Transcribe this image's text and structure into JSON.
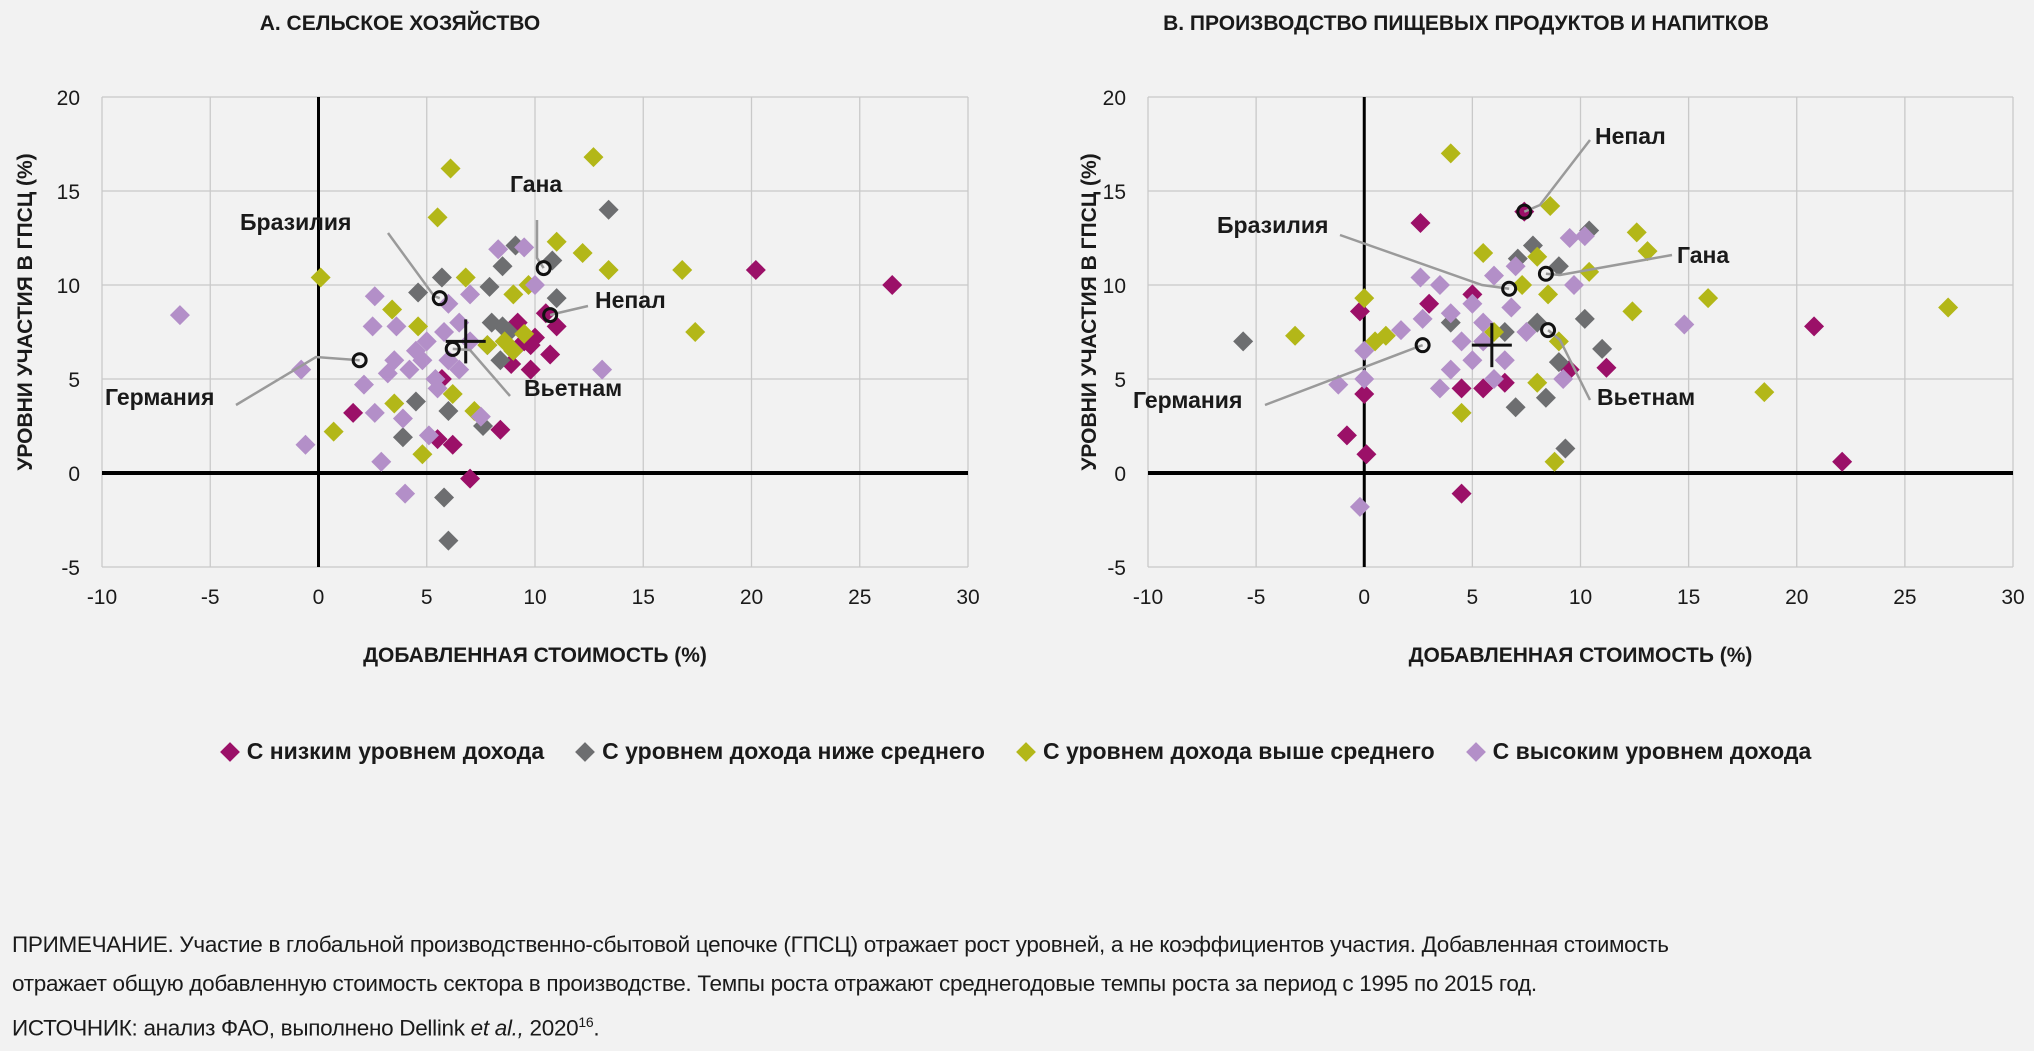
{
  "colors": {
    "low": "#9b1068",
    "lower_middle": "#6d6e70",
    "upper_middle": "#b3b718",
    "high": "#b38fc8",
    "background": "#f2f2f2",
    "grid": "#c9c9c9"
  },
  "legend": [
    {
      "key": "low",
      "label": "С низким уровнем дохода"
    },
    {
      "key": "lower_middle",
      "label": "С уровнем дохода ниже среднего"
    },
    {
      "key": "upper_middle",
      "label": "С уровнем дохода выше среднего"
    },
    {
      "key": "high",
      "label": "С высоким уровнем дохода"
    }
  ],
  "note": {
    "line1": "ПРИМЕЧАНИЕ. Участие в глобальной производственно-сбытовой цепочке (ГПСЦ) отражает рост уровней, а не коэффициентов участия. Добавленная стоимость",
    "line2": "отражает общую добавленную стоимость сектора в производстве. Темпы роста отражают среднегодовые темпы роста за период с 1995 по 2015 год.",
    "line3_prefix": "ИСТОЧНИК: анализ ФАО, выполнено Dellink ",
    "line3_italic": "et al.,",
    "line3_year": " 2020",
    "line3_sup": "16",
    "line3_end": "."
  },
  "chart_data": [
    {
      "type": "scatter",
      "title": "А. СЕЛЬСКОЕ ХОЗЯЙСТВО",
      "xlabel": "ДОБАВЛЕННАЯ СТОИМОСТЬ (%)",
      "ylabel": "УРОВНИ УЧАСТИЯ В ГПСЦ (%)",
      "xlim": [
        -10,
        30
      ],
      "ylim": [
        -5,
        20
      ],
      "xticks": [
        -10,
        -5,
        0,
        5,
        10,
        15,
        20,
        25,
        30
      ],
      "yticks": [
        -5,
        0,
        5,
        10,
        15,
        20
      ],
      "grid": true,
      "mean": [
        6.8,
        7.0
      ],
      "series": [
        {
          "key": "low",
          "name": "С низким уровнем дохода",
          "points": [
            [
              20.2,
              10.8
            ],
            [
              26.5,
              10
            ],
            [
              10.5,
              8.5
            ],
            [
              11,
              7.8
            ],
            [
              10.7,
              6.3
            ],
            [
              9.8,
              5.5
            ],
            [
              9.5,
              7
            ],
            [
              7,
              -0.3
            ],
            [
              8.4,
              2.3
            ],
            [
              1.6,
              3.2
            ],
            [
              5.5,
              1.8
            ],
            [
              6.2,
              1.5
            ],
            [
              9.2,
              8
            ],
            [
              10,
              7.2
            ],
            [
              9.8,
              6.8
            ],
            [
              5.7,
              5
            ],
            [
              8.9,
              5.8
            ]
          ]
        },
        {
          "key": "lower_middle",
          "name": "С уровнем дохода ниже среднего",
          "points": [
            [
              13.4,
              14
            ],
            [
              10.8,
              11.3
            ],
            [
              9.1,
              12.1
            ],
            [
              8.5,
              11
            ],
            [
              5.7,
              10.4
            ],
            [
              4.6,
              9.6
            ],
            [
              11,
              9.3
            ],
            [
              7.9,
              9.9
            ],
            [
              8,
              8
            ],
            [
              8.5,
              7.8
            ],
            [
              7.8,
              6.8
            ],
            [
              8.4,
              6
            ],
            [
              4.5,
              3.8
            ],
            [
              6,
              3.3
            ],
            [
              5.8,
              -1.3
            ],
            [
              6,
              -3.6
            ],
            [
              3.9,
              1.9
            ],
            [
              7.6,
              2.5
            ],
            [
              8.8,
              7.5
            ],
            [
              9,
              6.5
            ]
          ]
        },
        {
          "key": "upper_middle",
          "name": "С уровнем дохода выше среднего",
          "points": [
            [
              12.7,
              16.8
            ],
            [
              6.1,
              16.2
            ],
            [
              5.5,
              13.6
            ],
            [
              0.1,
              10.4
            ],
            [
              11,
              12.3
            ],
            [
              12.2,
              11.7
            ],
            [
              13.4,
              10.8
            ],
            [
              16.8,
              10.8
            ],
            [
              17.4,
              7.5
            ],
            [
              3.4,
              8.7
            ],
            [
              4.6,
              7.8
            ],
            [
              6.8,
              10.4
            ],
            [
              9,
              9.5
            ],
            [
              9.7,
              10
            ],
            [
              8.6,
              7
            ],
            [
              9,
              6.5
            ],
            [
              7.8,
              6.8
            ],
            [
              6.2,
              4.2
            ],
            [
              7.2,
              3.3
            ],
            [
              4.8,
              1
            ],
            [
              0.7,
              2.2
            ],
            [
              3.5,
              3.7
            ],
            [
              9.5,
              7.4
            ]
          ]
        },
        {
          "key": "high",
          "name": "С высоким уровнем дохода",
          "points": [
            [
              -6.4,
              8.4
            ],
            [
              -0.8,
              5.5
            ],
            [
              -0.6,
              1.5
            ],
            [
              2.6,
              9.4
            ],
            [
              2.5,
              7.8
            ],
            [
              3.6,
              7.8
            ],
            [
              2.1,
              4.7
            ],
            [
              2.6,
              3.2
            ],
            [
              2.9,
              0.6
            ],
            [
              3.9,
              2.9
            ],
            [
              4,
              -1.1
            ],
            [
              5.1,
              2
            ],
            [
              5.4,
              5
            ],
            [
              6,
              6
            ],
            [
              4.5,
              6.5
            ],
            [
              5,
              7
            ],
            [
              6.5,
              8
            ],
            [
              7,
              9.5
            ],
            [
              8.3,
              11.9
            ],
            [
              9.5,
              12
            ],
            [
              10,
              10
            ],
            [
              13.1,
              5.5
            ],
            [
              7.5,
              3
            ],
            [
              6,
              9
            ],
            [
              4.2,
              5.5
            ],
            [
              3.5,
              6
            ],
            [
              5.5,
              4.5
            ],
            [
              7,
              7
            ],
            [
              6.5,
              5.5
            ],
            [
              3.2,
              5.3
            ],
            [
              4.8,
              6
            ],
            [
              5.8,
              7.5
            ]
          ]
        }
      ],
      "annotations": [
        {
          "label": "Германия",
          "point": [
            1.9,
            6
          ]
        },
        {
          "label": "Бразилия",
          "point": [
            5.6,
            9.3
          ]
        },
        {
          "label": "Гана",
          "point": [
            10.4,
            10.9
          ]
        },
        {
          "label": "Непал",
          "point": [
            10.7,
            8.4
          ]
        },
        {
          "label": "Вьетнам",
          "point": [
            6.2,
            6.6
          ]
        }
      ]
    },
    {
      "type": "scatter",
      "title": "B. ПРОИЗВОДСТВО ПИЩЕВЫХ ПРОДУКТОВ И НАПИТКОВ",
      "xlabel": "ДОБАВЛЕННАЯ СТОИМОСТЬ (%)",
      "ylabel": "УРОВНИ УЧАСТИЯ В ГПСЦ (%)",
      "xlim": [
        -10,
        30
      ],
      "ylim": [
        -5,
        20
      ],
      "xticks": [
        -10,
        -5,
        0,
        5,
        10,
        15,
        20,
        25,
        30
      ],
      "yticks": [
        -5,
        0,
        5,
        10,
        15,
        20
      ],
      "grid": true,
      "mean": [
        5.9,
        6.8
      ],
      "series": [
        {
          "key": "low",
          "name": "С низким уровнем дохода",
          "points": [
            [
              7.4,
              13.9
            ],
            [
              2.6,
              13.3
            ],
            [
              -0.2,
              8.6
            ],
            [
              0,
              4.2
            ],
            [
              0.1,
              1
            ],
            [
              -0.8,
              2
            ],
            [
              4.5,
              -1.1
            ],
            [
              20.8,
              7.8
            ],
            [
              22.1,
              0.6
            ],
            [
              11.2,
              5.6
            ],
            [
              9.5,
              5.5
            ],
            [
              4.5,
              4.5
            ],
            [
              5.5,
              4.5
            ],
            [
              6.5,
              4.8
            ],
            [
              3,
              9
            ],
            [
              5,
              9.5
            ]
          ]
        },
        {
          "key": "lower_middle",
          "name": "С уровнем дохода ниже среднего",
          "points": [
            [
              -5.6,
              7
            ],
            [
              4,
              8
            ],
            [
              7.1,
              11.4
            ],
            [
              7.8,
              12.1
            ],
            [
              9,
              11
            ],
            [
              10.4,
              12.9
            ],
            [
              10.2,
              8.2
            ],
            [
              11,
              6.6
            ],
            [
              9.3,
              1.3
            ],
            [
              8.4,
              4
            ],
            [
              7,
              3.5
            ],
            [
              9,
              5.9
            ],
            [
              6.5,
              7.5
            ],
            [
              8,
              8
            ]
          ]
        },
        {
          "key": "upper_middle",
          "name": "С уровнем дохода выше среднего",
          "points": [
            [
              4,
              17
            ],
            [
              8.6,
              14.2
            ],
            [
              5.5,
              11.7
            ],
            [
              8,
              11.5
            ],
            [
              12.6,
              12.8
            ],
            [
              13.1,
              11.8
            ],
            [
              10.4,
              10.7
            ],
            [
              15.9,
              9.3
            ],
            [
              12.4,
              8.6
            ],
            [
              27,
              8.8
            ],
            [
              18.5,
              4.3
            ],
            [
              -3.2,
              7.3
            ],
            [
              0,
              9.3
            ],
            [
              1,
              7.3
            ],
            [
              0.5,
              7
            ],
            [
              8.8,
              0.6
            ],
            [
              4.5,
              3.2
            ],
            [
              8,
              4.8
            ],
            [
              9,
              7
            ],
            [
              6,
              7.5
            ],
            [
              8.5,
              9.5
            ],
            [
              7.3,
              10
            ]
          ]
        },
        {
          "key": "high",
          "name": "С высоким уровнем дохода",
          "points": [
            [
              -1.2,
              4.7
            ],
            [
              0,
              6.5
            ],
            [
              0,
              5
            ],
            [
              -0.2,
              -1.8
            ],
            [
              1.7,
              7.6
            ],
            [
              2.6,
              10.4
            ],
            [
              3.5,
              10
            ],
            [
              2.7,
              8.2
            ],
            [
              3.5,
              4.5
            ],
            [
              4,
              5.5
            ],
            [
              5,
              9
            ],
            [
              6,
              10.5
            ],
            [
              7,
              11
            ],
            [
              9.5,
              12.5
            ],
            [
              10.2,
              12.6
            ],
            [
              9.7,
              10
            ],
            [
              9.2,
              5
            ],
            [
              14.8,
              7.9
            ],
            [
              5.5,
              8
            ],
            [
              6.5,
              6
            ],
            [
              4.5,
              7
            ],
            [
              7.5,
              7.5
            ],
            [
              5,
              6
            ],
            [
              6,
              5
            ],
            [
              4,
              8.5
            ],
            [
              5.5,
              7
            ],
            [
              6.8,
              8.8
            ]
          ]
        }
      ],
      "annotations": [
        {
          "label": "Непал",
          "point": [
            7.4,
            13.9
          ]
        },
        {
          "label": "Бразилия",
          "point": [
            6.7,
            9.8
          ]
        },
        {
          "label": "Гана",
          "point": [
            8.4,
            10.6
          ]
        },
        {
          "label": "Германия",
          "point": [
            2.7,
            6.8
          ]
        },
        {
          "label": "Вьетнам",
          "point": [
            8.5,
            7.6
          ]
        }
      ]
    }
  ]
}
